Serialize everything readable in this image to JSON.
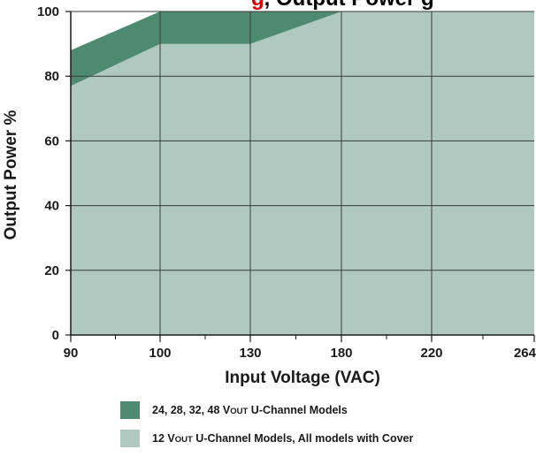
{
  "chart_data": {
    "type": "area",
    "title_parts": [
      {
        "text": "g",
        "color": "#d40000"
      },
      {
        "text": ", Output Power g",
        "color": "#000000"
      }
    ],
    "xlabel": "Input Voltage (VAC)",
    "ylabel": "Output Power %",
    "x_categories": [
      "90",
      "100",
      "130",
      "180",
      "220",
      "264"
    ],
    "yticks": [
      "0",
      "20",
      "40",
      "60",
      "80",
      "100"
    ],
    "ylim": [
      0,
      100
    ],
    "grid": true,
    "legend_position": "bottom",
    "series": [
      {
        "name": "24, 28, 32, 48 VOUT U-Channel Models",
        "label_parts": [
          "24, 28, 32, 48 V",
          "OUT",
          " U-Channel Models"
        ],
        "color": "#4d8a70",
        "points": [
          [
            "90",
            88
          ],
          [
            "100",
            100
          ],
          [
            "130",
            100
          ],
          [
            "180",
            100
          ],
          [
            "220",
            100
          ],
          [
            "264",
            100
          ]
        ]
      },
      {
        "name": "12 VOUT U-Channel Models, All models with Cover",
        "label_parts": [
          "12 V",
          "OUT",
          " U-Channel Models, All models with Cover"
        ],
        "color": "#b0c9c0",
        "points": [
          [
            "90",
            77
          ],
          [
            "100",
            90
          ],
          [
            "130",
            90
          ],
          [
            "180",
            100
          ],
          [
            "220",
            100
          ],
          [
            "264",
            100
          ]
        ]
      }
    ]
  }
}
